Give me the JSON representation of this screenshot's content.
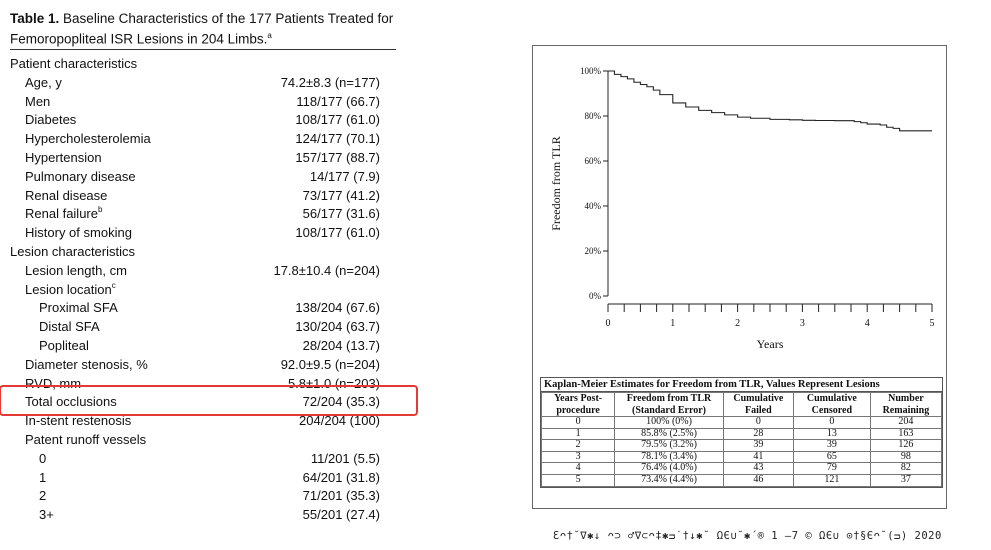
{
  "table": {
    "title_bold": "Table 1.",
    "title_text": "Baseline Characteristics of the 177 Patients Treated for Femoropopliteal ISR Lesions in 204 Limbs.",
    "title_sup": "a",
    "rows": [
      {
        "label": "Patient characteristics",
        "value": "",
        "level": 0
      },
      {
        "label": "Age, y",
        "value": "74.2±8.3 (n=177)",
        "level": 1
      },
      {
        "label": "Men",
        "value": "118/177 (66.7)",
        "level": 1
      },
      {
        "label": "Diabetes",
        "value": "108/177 (61.0)",
        "level": 1
      },
      {
        "label": "Hypercholesterolemia",
        "value": "124/177 (70.1)",
        "level": 1
      },
      {
        "label": "Hypertension",
        "value": "157/177 (88.7)",
        "level": 1
      },
      {
        "label": "Pulmonary disease",
        "value": "14/177 (7.9)",
        "level": 1
      },
      {
        "label": "Renal disease",
        "value": "73/177 (41.2)",
        "level": 1
      },
      {
        "label": "Renal failure",
        "sup": "b",
        "value": "56/177 (31.6)",
        "level": 1
      },
      {
        "label": "History of smoking",
        "value": "108/177 (61.0)",
        "level": 1
      },
      {
        "label": "Lesion characteristics",
        "value": "",
        "level": 0
      },
      {
        "label": "Lesion length, cm",
        "value": "17.8±10.4 (n=204)",
        "level": 1
      },
      {
        "label": "Lesion location",
        "sup": "c",
        "value": "",
        "level": 1
      },
      {
        "label": "Proximal SFA",
        "value": "138/204 (67.6)",
        "level": 2
      },
      {
        "label": "Distal SFA",
        "value": "130/204 (63.7)",
        "level": 2
      },
      {
        "label": "Popliteal",
        "value": "28/204 (13.7)",
        "level": 2
      },
      {
        "label": "Diameter stenosis, %",
        "value": "92.0±9.5 (n=204)",
        "level": 1
      },
      {
        "label": "RVD, mm",
        "value": "5.8±1.0 (n=203)",
        "level": 1
      },
      {
        "label": "Total occlusions",
        "value": "72/204 (35.3)",
        "level": 1
      },
      {
        "label": "In-stent restenosis",
        "value": "204/204 (100)",
        "level": 1
      },
      {
        "label": "Patent runoff vessels",
        "value": "",
        "level": 1
      },
      {
        "label": "0",
        "value": "11/201 (5.5)",
        "level": 2
      },
      {
        "label": "1",
        "value": "64/201 (31.8)",
        "level": 2
      },
      {
        "label": "2",
        "value": "71/201 (35.3)",
        "level": 2
      },
      {
        "label": "3+",
        "value": "55/201 (27.4)",
        "level": 2
      }
    ],
    "highlight_color": "#e53935"
  },
  "chart_data": {
    "type": "line",
    "title": "",
    "xlabel": "Years",
    "ylabel": "Freedom from TLR",
    "xlim": [
      0,
      5
    ],
    "ylim": [
      0,
      100
    ],
    "x_ticks": [
      "0",
      "1",
      "2",
      "3",
      "4",
      "5"
    ],
    "y_ticks": [
      "0%",
      "20%",
      "40%",
      "60%",
      "80%",
      "100%"
    ],
    "series": [
      {
        "x": [
          0,
          0.1,
          0.2,
          0.3,
          0.4,
          0.5,
          0.6,
          0.7,
          0.8,
          1.0,
          1.2,
          1.4,
          1.6,
          1.8,
          2.0,
          2.2,
          2.5,
          2.8,
          3.0,
          3.2,
          3.5,
          3.8,
          3.9,
          4.0,
          4.2,
          4.3,
          4.4,
          4.5,
          5.0
        ],
        "y": [
          100,
          98.5,
          97.5,
          96.5,
          95,
          94,
          93,
          91.5,
          89.5,
          85.8,
          84,
          82.5,
          81.5,
          80.5,
          79.5,
          79,
          78.5,
          78.3,
          78.1,
          78,
          77.9,
          77.5,
          77,
          76.4,
          76,
          75,
          74.5,
          73.4,
          73.4
        ]
      }
    ],
    "grid": false,
    "legend": "none"
  },
  "km_table": {
    "title": "Kaplan-Meier Estimates for Freedom from TLR, Values Represent Lesions",
    "headers": [
      "Years Post-procedure",
      "Freedom from TLR (Standard Error)",
      "Cumulative Failed",
      "Cumulative Censored",
      "Number Remaining"
    ],
    "rows": [
      [
        "0",
        "100%  (0%)",
        "0",
        "0",
        "204"
      ],
      [
        "1",
        "85.8%  (2.5%)",
        "28",
        "13",
        "163"
      ],
      [
        "2",
        "79.5%  (3.2%)",
        "39",
        "39",
        "126"
      ],
      [
        "3",
        "78.1%  (3.4%)",
        "41",
        "65",
        "98"
      ],
      [
        "4",
        "76.4%  (4.0%)",
        "43",
        "79",
        "82"
      ],
      [
        "5",
        "73.4%  (4.4%)",
        "46",
        "121",
        "37"
      ]
    ]
  },
  "caption": "Ɛᴖ†˘∇✱↓ ᴖ⊃ ♂∇⊂ᴖ‡✱ᴝ˙†↓✱˘ ΩЄ∪˘✱´® 1 –7 © ΩЄ∪ ⊙†§Єᴖ˘(ᴝ) 2020"
}
